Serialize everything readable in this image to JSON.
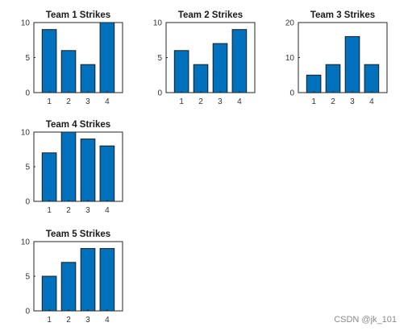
{
  "watermark": "CSDN @jk_101",
  "bar_color": "#0072BD",
  "chart_data": [
    {
      "type": "bar",
      "title": "Team 1 Strikes",
      "categories": [
        "1",
        "2",
        "3",
        "4"
      ],
      "values": [
        9,
        6,
        4,
        10
      ],
      "ylim": [
        0,
        10
      ],
      "yticks": [
        "0",
        "5",
        "10"
      ],
      "xlabel": "",
      "ylabel": ""
    },
    {
      "type": "bar",
      "title": "Team 2 Strikes",
      "categories": [
        "1",
        "2",
        "3",
        "4"
      ],
      "values": [
        6,
        4,
        7,
        9
      ],
      "ylim": [
        0,
        10
      ],
      "yticks": [
        "0",
        "5",
        "10"
      ],
      "xlabel": "",
      "ylabel": ""
    },
    {
      "type": "bar",
      "title": "Team 3 Strikes",
      "categories": [
        "1",
        "2",
        "3",
        "4"
      ],
      "values": [
        5,
        8,
        16,
        8
      ],
      "ylim": [
        0,
        20
      ],
      "yticks": [
        "0",
        "10",
        "20"
      ],
      "xlabel": "",
      "ylabel": ""
    },
    {
      "type": "bar",
      "title": "Team 4 Strikes",
      "categories": [
        "1",
        "2",
        "3",
        "4"
      ],
      "values": [
        7,
        10,
        9,
        8
      ],
      "ylim": [
        0,
        10
      ],
      "yticks": [
        "0",
        "5",
        "10"
      ],
      "xlabel": "",
      "ylabel": ""
    },
    {
      "type": "bar",
      "title": "Team 5 Strikes",
      "categories": [
        "1",
        "2",
        "3",
        "4"
      ],
      "values": [
        5,
        7,
        9,
        9
      ],
      "ylim": [
        0,
        10
      ],
      "yticks": [
        "0",
        "5",
        "10"
      ],
      "xlabel": "",
      "ylabel": ""
    }
  ]
}
